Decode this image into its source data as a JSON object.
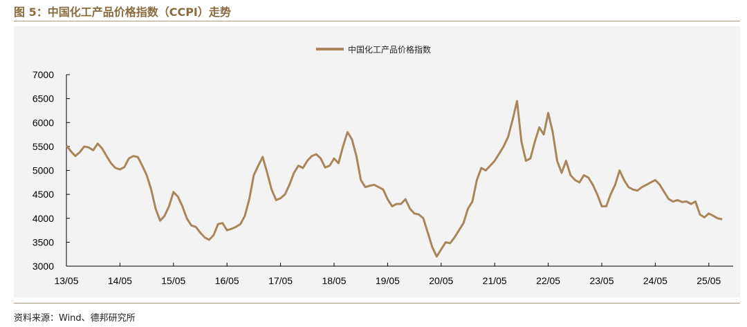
{
  "figure": {
    "title": "图 5：中国化工产品价格指数（CCPI）走势",
    "source": "资料来源：Wind、德邦研究所"
  },
  "chart_data": {
    "type": "line",
    "title": "",
    "xlabel": "",
    "ylabel": "",
    "ylim": [
      3000,
      7000
    ],
    "yticks": [
      3000,
      3500,
      4000,
      4500,
      5000,
      5500,
      6000,
      6500,
      7000
    ],
    "xticks": [
      "13/05",
      "14/05",
      "15/05",
      "16/05",
      "17/05",
      "18/05",
      "19/05",
      "20/05",
      "21/05",
      "22/05",
      "23/05",
      "24/05",
      "25/05"
    ],
    "legend_position": "top-center",
    "grid": false,
    "series": [
      {
        "name": "中国化工产品价格指数",
        "color": "#a8865a",
        "points": [
          [
            "2013-05",
            5520
          ],
          [
            "2013-06",
            5400
          ],
          [
            "2013-07",
            5300
          ],
          [
            "2013-08",
            5380
          ],
          [
            "2013-09",
            5500
          ],
          [
            "2013-10",
            5480
          ],
          [
            "2013-11",
            5420
          ],
          [
            "2013-12",
            5560
          ],
          [
            "2014-01",
            5460
          ],
          [
            "2014-02",
            5300
          ],
          [
            "2014-03",
            5150
          ],
          [
            "2014-04",
            5050
          ],
          [
            "2014-05",
            5020
          ],
          [
            "2014-06",
            5070
          ],
          [
            "2014-07",
            5250
          ],
          [
            "2014-08",
            5300
          ],
          [
            "2014-09",
            5280
          ],
          [
            "2014-10",
            5100
          ],
          [
            "2014-11",
            4900
          ],
          [
            "2014-12",
            4600
          ],
          [
            "2015-01",
            4200
          ],
          [
            "2015-02",
            3950
          ],
          [
            "2015-03",
            4050
          ],
          [
            "2015-04",
            4250
          ],
          [
            "2015-05",
            4550
          ],
          [
            "2015-06",
            4450
          ],
          [
            "2015-07",
            4250
          ],
          [
            "2015-08",
            4000
          ],
          [
            "2015-09",
            3850
          ],
          [
            "2015-10",
            3820
          ],
          [
            "2015-11",
            3700
          ],
          [
            "2015-12",
            3600
          ],
          [
            "2016-01",
            3550
          ],
          [
            "2016-02",
            3650
          ],
          [
            "2016-03",
            3880
          ],
          [
            "2016-04",
            3900
          ],
          [
            "2016-05",
            3750
          ],
          [
            "2016-06",
            3780
          ],
          [
            "2016-07",
            3820
          ],
          [
            "2016-08",
            3880
          ],
          [
            "2016-09",
            4050
          ],
          [
            "2016-10",
            4400
          ],
          [
            "2016-11",
            4900
          ],
          [
            "2016-12",
            5100
          ],
          [
            "2017-01",
            5280
          ],
          [
            "2017-02",
            4950
          ],
          [
            "2017-03",
            4600
          ],
          [
            "2017-04",
            4380
          ],
          [
            "2017-05",
            4420
          ],
          [
            "2017-06",
            4500
          ],
          [
            "2017-07",
            4700
          ],
          [
            "2017-08",
            4950
          ],
          [
            "2017-09",
            5100
          ],
          [
            "2017-10",
            5050
          ],
          [
            "2017-11",
            5200
          ],
          [
            "2017-12",
            5300
          ],
          [
            "2018-01",
            5340
          ],
          [
            "2018-02",
            5250
          ],
          [
            "2018-03",
            5060
          ],
          [
            "2018-04",
            5100
          ],
          [
            "2018-05",
            5250
          ],
          [
            "2018-06",
            5150
          ],
          [
            "2018-07",
            5500
          ],
          [
            "2018-08",
            5800
          ],
          [
            "2018-09",
            5650
          ],
          [
            "2018-10",
            5300
          ],
          [
            "2018-11",
            4800
          ],
          [
            "2018-12",
            4650
          ],
          [
            "2019-01",
            4680
          ],
          [
            "2019-02",
            4700
          ],
          [
            "2019-03",
            4650
          ],
          [
            "2019-04",
            4600
          ],
          [
            "2019-05",
            4400
          ],
          [
            "2019-06",
            4250
          ],
          [
            "2019-07",
            4300
          ],
          [
            "2019-08",
            4300
          ],
          [
            "2019-09",
            4400
          ],
          [
            "2019-10",
            4200
          ],
          [
            "2019-11",
            4100
          ],
          [
            "2019-12",
            4080
          ],
          [
            "2020-01",
            4000
          ],
          [
            "2020-02",
            3700
          ],
          [
            "2020-03",
            3400
          ],
          [
            "2020-04",
            3200
          ],
          [
            "2020-05",
            3350
          ],
          [
            "2020-06",
            3500
          ],
          [
            "2020-07",
            3480
          ],
          [
            "2020-08",
            3600
          ],
          [
            "2020-09",
            3750
          ],
          [
            "2020-10",
            3900
          ],
          [
            "2020-11",
            4200
          ],
          [
            "2020-12",
            4350
          ],
          [
            "2021-01",
            4800
          ],
          [
            "2021-02",
            5050
          ],
          [
            "2021-03",
            5000
          ],
          [
            "2021-04",
            5100
          ],
          [
            "2021-05",
            5200
          ],
          [
            "2021-06",
            5350
          ],
          [
            "2021-07",
            5500
          ],
          [
            "2021-08",
            5700
          ],
          [
            "2021-09",
            6050
          ],
          [
            "2021-10",
            6450
          ],
          [
            "2021-11",
            5600
          ],
          [
            "2021-12",
            5200
          ],
          [
            "2022-01",
            5250
          ],
          [
            "2022-02",
            5600
          ],
          [
            "2022-03",
            5900
          ],
          [
            "2022-04",
            5750
          ],
          [
            "2022-05",
            6200
          ],
          [
            "2022-06",
            5800
          ],
          [
            "2022-07",
            5200
          ],
          [
            "2022-08",
            4950
          ],
          [
            "2022-09",
            5200
          ],
          [
            "2022-10",
            4900
          ],
          [
            "2022-11",
            4800
          ],
          [
            "2022-12",
            4750
          ],
          [
            "2023-01",
            4900
          ],
          [
            "2023-02",
            4850
          ],
          [
            "2023-03",
            4700
          ],
          [
            "2023-04",
            4500
          ],
          [
            "2023-05",
            4250
          ],
          [
            "2023-06",
            4250
          ],
          [
            "2023-07",
            4500
          ],
          [
            "2023-08",
            4700
          ],
          [
            "2023-09",
            5000
          ],
          [
            "2023-10",
            4800
          ],
          [
            "2023-11",
            4650
          ],
          [
            "2023-12",
            4600
          ],
          [
            "2024-01",
            4580
          ],
          [
            "2024-02",
            4650
          ],
          [
            "2024-03",
            4700
          ],
          [
            "2024-04",
            4750
          ],
          [
            "2024-05",
            4800
          ],
          [
            "2024-06",
            4700
          ],
          [
            "2024-07",
            4550
          ],
          [
            "2024-08",
            4400
          ],
          [
            "2024-09",
            4350
          ],
          [
            "2024-10",
            4380
          ],
          [
            "2024-11",
            4340
          ],
          [
            "2024-12",
            4350
          ],
          [
            "2025-01",
            4300
          ],
          [
            "2025-02",
            4350
          ],
          [
            "2025-03",
            4080
          ],
          [
            "2025-04",
            4020
          ],
          [
            "2025-05",
            4100
          ],
          [
            "2025-06",
            4050
          ],
          [
            "2025-07",
            4000
          ],
          [
            "2025-08",
            3980
          ]
        ]
      }
    ]
  }
}
